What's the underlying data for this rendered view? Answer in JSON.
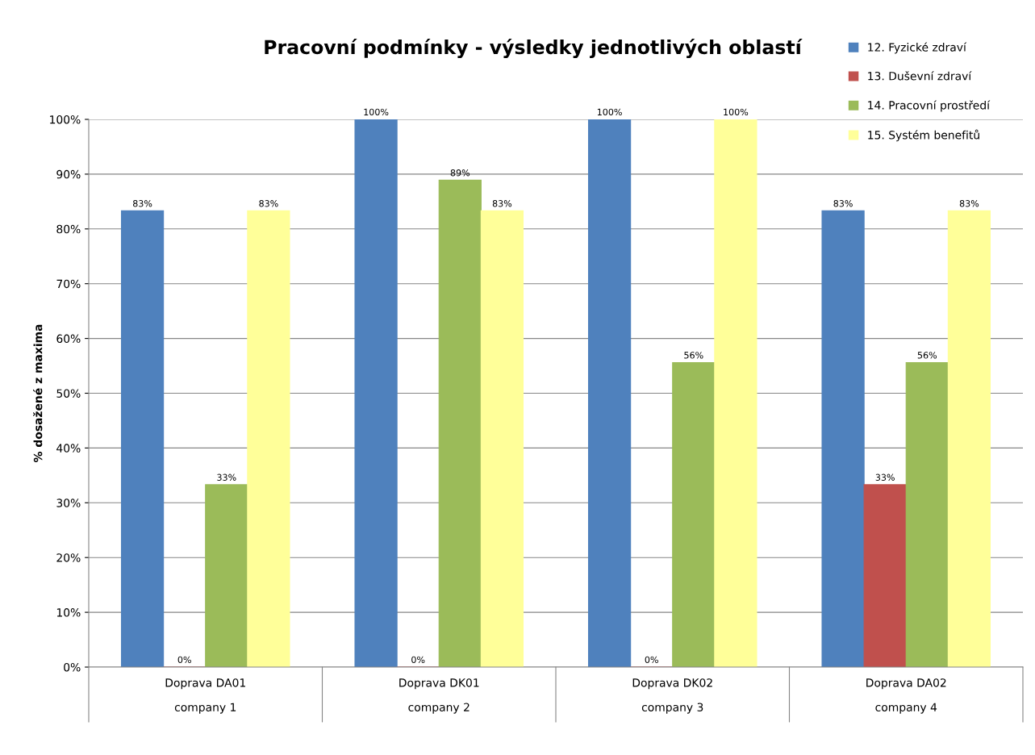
{
  "chart_data": {
    "type": "bar",
    "title": "Pracovní podmínky - výsledky jednotlivých oblastí",
    "ylabel": "% dosažené z maxima",
    "categories": [
      "Doprava DA01\ncompany 1",
      "Doprava DK01\ncompany 2",
      "Doprava DK02\ncompany 3",
      "Doprava DA02\ncompany 4"
    ],
    "series": [
      {
        "name": "12. Fyzické zdraví",
        "color": "#4f81bd",
        "values": [
          83.3,
          100,
          100,
          83.3
        ],
        "value_labels": [
          "83%",
          "100%",
          "100%",
          "83%"
        ]
      },
      {
        "name": "13. Duševní zdraví",
        "color": "#c0504d",
        "values": [
          0,
          0,
          0,
          33.3
        ],
        "value_labels": [
          "0%",
          "0%",
          "0%",
          "33%"
        ]
      },
      {
        "name": "14. Pracovní prostředí",
        "color": "#9bbb59",
        "values": [
          33.3,
          88.9,
          55.6,
          55.6
        ],
        "value_labels": [
          "33%",
          "89%",
          "56%",
          "56%"
        ]
      },
      {
        "name": "15. Systém benefitů",
        "color": "#ffff99",
        "values": [
          83.3,
          83.3,
          100,
          83.3
        ],
        "value_labels": [
          "83%",
          "83%",
          "100%",
          "83%"
        ]
      }
    ],
    "ylim": [
      0,
      100
    ],
    "yticks": [
      {
        "value": 0,
        "label": "0%"
      },
      {
        "value": 10,
        "label": "10%"
      },
      {
        "value": 20,
        "label": "20%"
      },
      {
        "value": 30,
        "label": "30%"
      },
      {
        "value": 40,
        "label": "40%"
      },
      {
        "value": 50,
        "label": "50%"
      },
      {
        "value": 60,
        "label": "60%"
      },
      {
        "value": 70,
        "label": "70%"
      },
      {
        "value": 80,
        "label": "80%"
      },
      {
        "value": 90,
        "label": "90%"
      },
      {
        "value": 100,
        "label": "100%"
      }
    ],
    "grid": "y",
    "legend": "top right"
  }
}
